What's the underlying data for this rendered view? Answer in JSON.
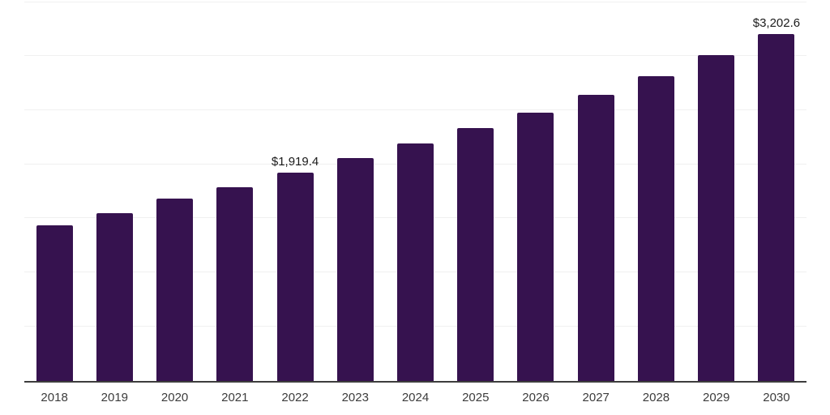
{
  "chart_data": {
    "type": "bar",
    "title": "",
    "xlabel": "",
    "ylabel": "",
    "categories": [
      "2018",
      "2019",
      "2020",
      "2021",
      "2022",
      "2023",
      "2024",
      "2025",
      "2026",
      "2027",
      "2028",
      "2029",
      "2030"
    ],
    "values": [
      1438.2,
      1550.9,
      1680.7,
      1789.7,
      1919.4,
      2053.9,
      2188.2,
      2330.0,
      2479.2,
      2640.4,
      2815.0,
      3009.1,
      3202.6
    ],
    "data_labels": {
      "2022": "$1,919.4",
      "2030": "$3,202.6"
    },
    "ylim": [
      0,
      3500
    ],
    "gridline_step": 500,
    "grid": true,
    "legend": false,
    "colors": {
      "bar": "#36124f",
      "axis": "#3d3d3d",
      "grid": "#f0f0f0",
      "data_label": "#1b1b1b",
      "tick_label": "#3c3c3c",
      "background": "#ffffff"
    }
  }
}
